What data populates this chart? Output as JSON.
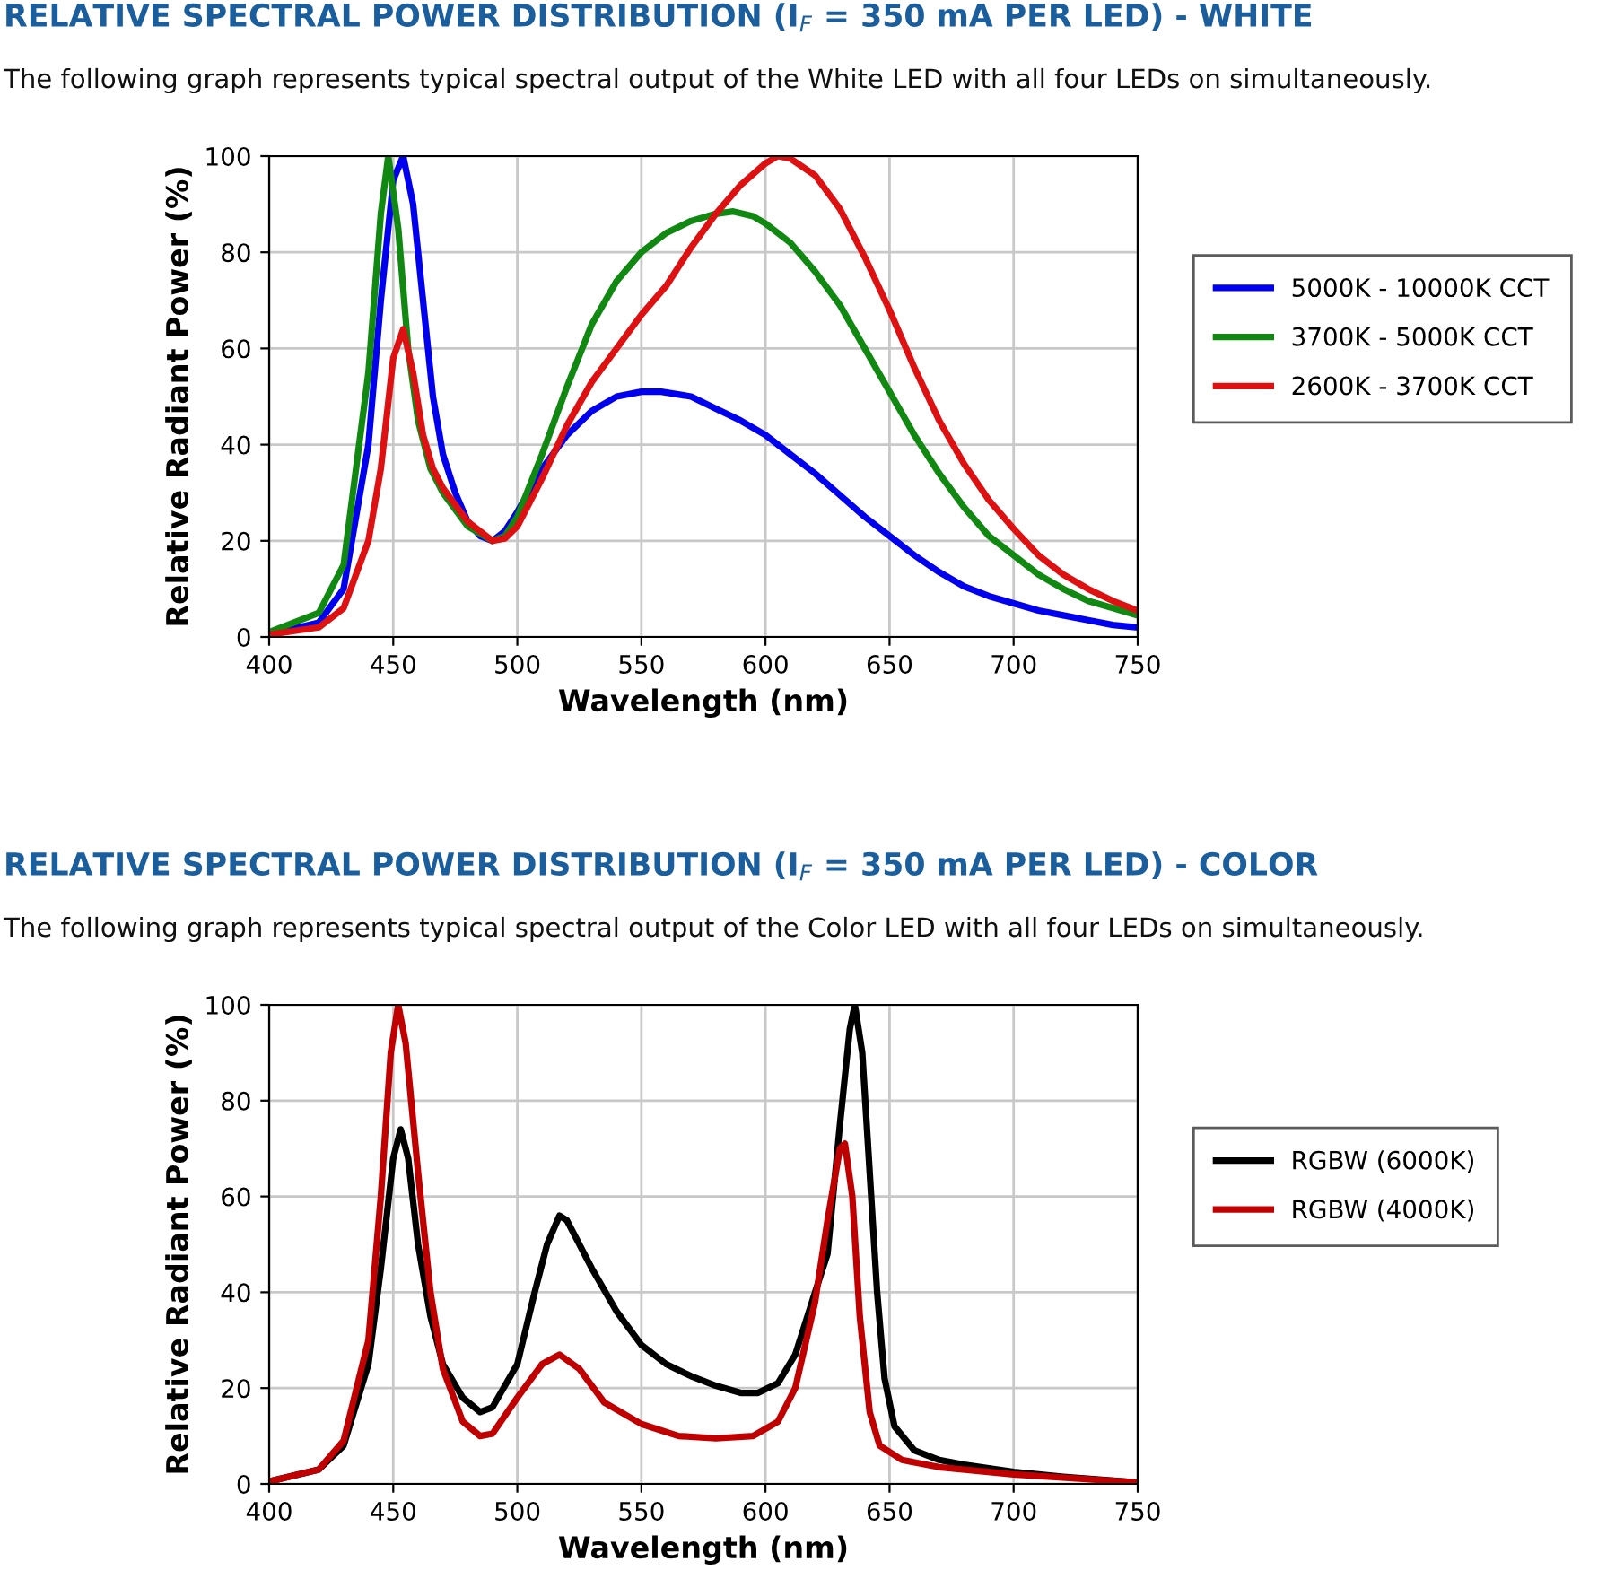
{
  "chart_data": [
    {
      "type": "line",
      "title": "RELATIVE SPECTRAL POWER DISTRIBUTION (I$_{F}$ = 350 mA PER LED) - WHITE",
      "subtitle": "The following graph represents typical spectral output of the White LED with all four LEDs on simultaneously.",
      "xlabel": "Wavelength (nm)",
      "ylabel": "Relative Radiant Power (%)",
      "xlim": [
        400,
        750
      ],
      "ylim": [
        0,
        100
      ],
      "xticks": [
        400,
        450,
        500,
        550,
        600,
        650,
        700,
        750
      ],
      "yticks": [
        0,
        20,
        40,
        60,
        80,
        100
      ],
      "grid": true,
      "legend": "right",
      "marker": "none",
      "line_style": "solid",
      "series": [
        {
          "name": "5000K - 10000K CCT",
          "color": "#0000ee",
          "x": [
            400,
            420,
            430,
            440,
            445,
            450,
            454,
            458,
            462,
            466,
            470,
            475,
            480,
            485,
            490,
            495,
            500,
            510,
            520,
            530,
            540,
            550,
            558,
            570,
            580,
            590,
            600,
            610,
            620,
            630,
            640,
            650,
            660,
            670,
            680,
            690,
            700,
            710,
            720,
            730,
            740,
            750
          ],
          "values": [
            0.5,
            3,
            10,
            40,
            70,
            95,
            100,
            90,
            70,
            50,
            38,
            30,
            24,
            21,
            20,
            22,
            26,
            35,
            42,
            47,
            50,
            51,
            51,
            50,
            47.5,
            45,
            42,
            38,
            34,
            29.5,
            25,
            21,
            17,
            13.5,
            10.5,
            8.5,
            7,
            5.5,
            4.5,
            3.5,
            2.5,
            2
          ]
        },
        {
          "name": "3700K - 5000K CCT",
          "color": "#118811",
          "x": [
            400,
            420,
            430,
            440,
            445,
            448,
            452,
            456,
            460,
            465,
            470,
            480,
            490,
            495,
            500,
            510,
            520,
            530,
            540,
            550,
            560,
            570,
            580,
            587,
            595,
            600,
            610,
            620,
            630,
            640,
            650,
            660,
            670,
            680,
            690,
            700,
            710,
            720,
            730,
            740,
            750
          ],
          "values": [
            1,
            5,
            15,
            55,
            88,
            100,
            85,
            60,
            45,
            35,
            30,
            23,
            20,
            21,
            25,
            38,
            52,
            65,
            74,
            80,
            84,
            86.5,
            88,
            88.5,
            87.5,
            86,
            82,
            76,
            69,
            60,
            51,
            42,
            34,
            27,
            21,
            17,
            13,
            10,
            7.5,
            6,
            4.5
          ]
        },
        {
          "name": "2600K - 3700K CCT",
          "color": "#dd1111",
          "x": [
            400,
            420,
            430,
            440,
            445,
            450,
            454,
            458,
            462,
            466,
            470,
            480,
            490,
            495,
            500,
            510,
            520,
            530,
            540,
            550,
            560,
            570,
            580,
            590,
            600,
            605,
            610,
            620,
            630,
            640,
            650,
            660,
            670,
            680,
            690,
            700,
            710,
            720,
            730,
            740,
            750
          ],
          "values": [
            0.5,
            2,
            6,
            20,
            35,
            58,
            64,
            55,
            42,
            35,
            31,
            24,
            20,
            20.5,
            23,
            33,
            44,
            53,
            60,
            67,
            73,
            81,
            88,
            94,
            98.5,
            100,
            99.5,
            96,
            89,
            79,
            68,
            56,
            45,
            36,
            28.5,
            22.5,
            17,
            13,
            10,
            7.5,
            5.5
          ]
        }
      ]
    },
    {
      "type": "line",
      "title": "RELATIVE SPECTRAL POWER DISTRIBUTION (I$_{F}$ = 350 mA PER LED) - COLOR",
      "subtitle": "The following graph represents typical spectral output of the Color LED with all four LEDs on simultaneously.",
      "xlabel": "Wavelength (nm)",
      "ylabel": "Relative Radiant Power (%)",
      "xlim": [
        400,
        750
      ],
      "ylim": [
        0,
        100
      ],
      "xticks": [
        400,
        450,
        500,
        550,
        600,
        650,
        700,
        750
      ],
      "yticks": [
        0,
        20,
        40,
        60,
        80,
        100
      ],
      "grid": true,
      "legend": "right",
      "marker": "none",
      "line_style": "solid",
      "series": [
        {
          "name": "RGBW (6000K)",
          "color": "#000000",
          "x": [
            400,
            420,
            430,
            440,
            445,
            450,
            453,
            456,
            460,
            465,
            470,
            478,
            485,
            490,
            500,
            507,
            512,
            517,
            520,
            530,
            540,
            550,
            560,
            570,
            580,
            590,
            597,
            605,
            612,
            620,
            625,
            630,
            634,
            636,
            639,
            642,
            645,
            648,
            652,
            660,
            670,
            680,
            700,
            720,
            750
          ],
          "values": [
            0.5,
            3,
            8,
            25,
            45,
            68,
            74,
            68,
            50,
            35,
            25,
            18,
            15,
            16,
            25,
            40,
            50,
            56,
            55,
            45,
            36,
            29,
            25,
            22.5,
            20.5,
            19,
            19,
            21,
            27,
            40,
            48,
            75,
            95,
            100,
            90,
            65,
            40,
            22,
            12,
            7,
            5,
            4,
            2.5,
            1.5,
            0.3
          ]
        },
        {
          "name": "RGBW (4000K)",
          "color": "#c00000",
          "x": [
            400,
            420,
            430,
            440,
            445,
            449,
            452,
            455,
            460,
            465,
            470,
            478,
            485,
            490,
            500,
            510,
            517,
            525,
            535,
            550,
            565,
            580,
            595,
            605,
            612,
            620,
            625,
            630,
            632,
            635,
            638,
            642,
            646,
            655,
            670,
            700,
            750
          ],
          "values": [
            0.5,
            3,
            9,
            30,
            60,
            90,
            100,
            92,
            65,
            40,
            24,
            13,
            10,
            10.5,
            18,
            25,
            27,
            24,
            17,
            12.5,
            10,
            9.5,
            10,
            13,
            20,
            38,
            55,
            70,
            71,
            60,
            35,
            15,
            8,
            5,
            3.5,
            2,
            0.3
          ]
        }
      ]
    }
  ]
}
